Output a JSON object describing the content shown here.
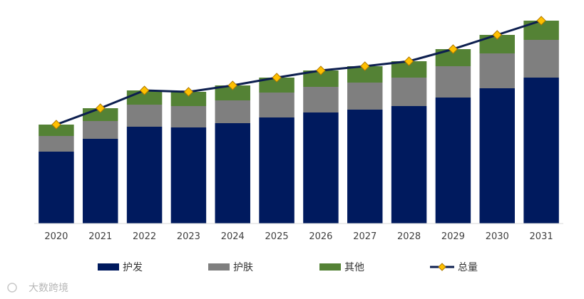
{
  "chart_data": {
    "type": "bar",
    "stacked": true,
    "categories": [
      "2020",
      "2021",
      "2022",
      "2023",
      "2024",
      "2025",
      "2026",
      "2027",
      "2028",
      "2029",
      "2030",
      "2031"
    ],
    "series": [
      {
        "name": "护发",
        "color": "#001a5e",
        "values": [
          101,
          119,
          136,
          135,
          141,
          149,
          156,
          160,
          165,
          177,
          190,
          205
        ]
      },
      {
        "name": "护肤",
        "color": "#7f7f7f",
        "values": [
          22,
          25,
          31,
          30,
          32,
          35,
          36,
          38,
          40,
          44,
          49,
          53
        ]
      },
      {
        "name": "其他",
        "color": "#548235",
        "values": [
          16,
          18,
          20,
          20,
          21,
          21,
          23,
          23,
          23,
          24,
          26,
          27
        ]
      }
    ],
    "line": {
      "name": "总量",
      "color": "#0d1f4f",
      "marker_color": "#ffc000",
      "values": [
        139,
        162,
        187,
        185,
        194,
        205,
        215,
        221,
        228,
        245,
        265,
        285
      ]
    },
    "ylim": [
      0,
      285
    ],
    "title": "",
    "xlabel": "",
    "ylabel": "",
    "legend_position": "bottom"
  },
  "watermark": {
    "text": "大数跨境"
  }
}
